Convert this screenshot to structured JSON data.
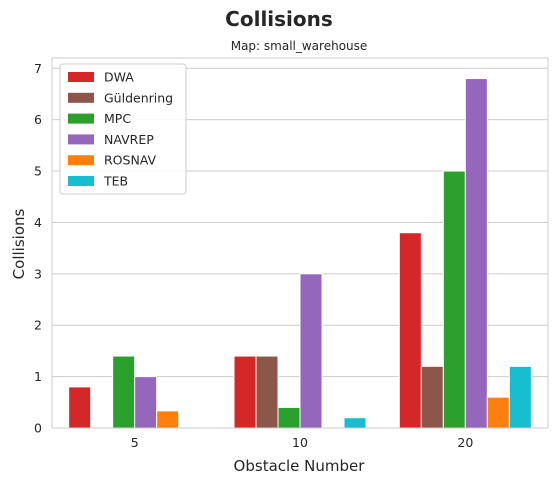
{
  "chart_data": {
    "type": "bar",
    "title": "Collisions",
    "subtitle": "Map: small_warehouse",
    "xlabel": "Obstacle Number",
    "ylabel": "Collisions",
    "categories": [
      "5",
      "10",
      "20"
    ],
    "ylim": [
      0,
      7.2
    ],
    "yticks": [
      0,
      1,
      2,
      3,
      4,
      5,
      6,
      7
    ],
    "grid": true,
    "legend_position": "top-left",
    "series": [
      {
        "name": "DWA",
        "color": "#d62728",
        "values": [
          0.8,
          1.4,
          3.8
        ]
      },
      {
        "name": "Güldenring",
        "color": "#8c564b",
        "values": [
          0,
          1.4,
          1.2
        ]
      },
      {
        "name": "MPC",
        "color": "#2ca02c",
        "values": [
          1.4,
          0.4,
          5.0
        ]
      },
      {
        "name": "NAVREP",
        "color": "#9467bd",
        "values": [
          1.0,
          3.0,
          6.8
        ]
      },
      {
        "name": "ROSNAV",
        "color": "#ff7f0e",
        "values": [
          0.333,
          0,
          0.6
        ]
      },
      {
        "name": "TEB",
        "color": "#17becf",
        "values": [
          0,
          0.2,
          1.2
        ]
      }
    ]
  }
}
